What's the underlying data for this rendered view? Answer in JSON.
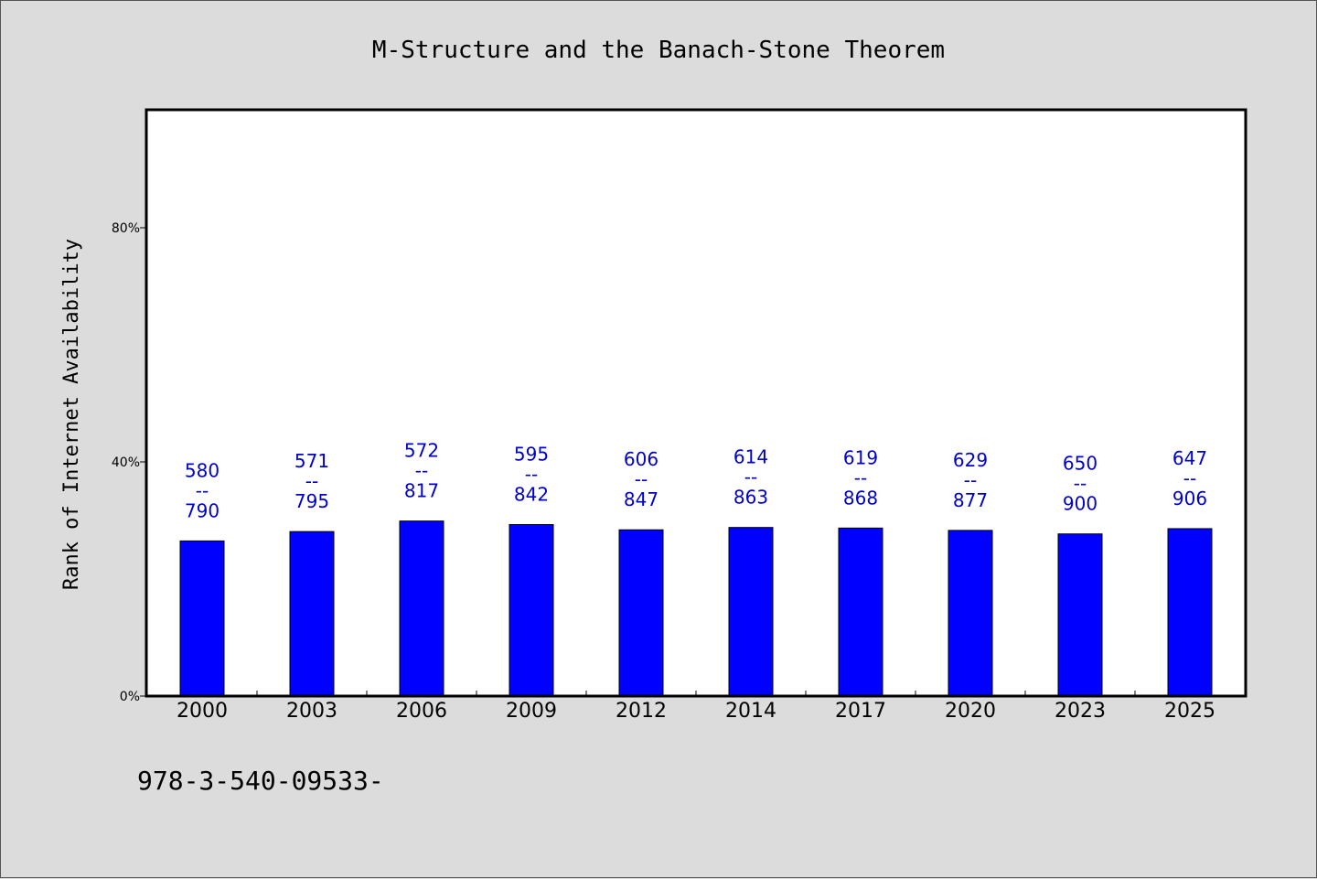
{
  "chart_data": {
    "type": "bar",
    "title": "M-Structure and the Banach-Stone Theorem",
    "ylabel": "Rank of Internet Availability",
    "xlabel": "",
    "categories": [
      "2000",
      "2003",
      "2006",
      "2009",
      "2012",
      "2014",
      "2017",
      "2020",
      "2023",
      "2025"
    ],
    "values": [
      26.5,
      28.1,
      29.9,
      29.3,
      28.4,
      28.8,
      28.7,
      28.3,
      27.7,
      28.6
    ],
    "labels_top": [
      "580",
      "571",
      "572",
      "595",
      "606",
      "614",
      "619",
      "629",
      "650",
      "647"
    ],
    "labels_separator": "--",
    "labels_bottom": [
      "790",
      "795",
      "817",
      "842",
      "847",
      "863",
      "868",
      "877",
      "900",
      "906"
    ],
    "ylim": [
      0,
      100
    ],
    "yticks": [
      0,
      40,
      80
    ],
    "ytick_labels": [
      "0%",
      "40%",
      "80%"
    ],
    "grid": false,
    "bar_color": "#0000ff",
    "label_color": "#0000cc",
    "background": "#dcdcdc",
    "plot_background": "#ffffff"
  },
  "footer": {
    "isbn": "978-3-540-09533-"
  }
}
